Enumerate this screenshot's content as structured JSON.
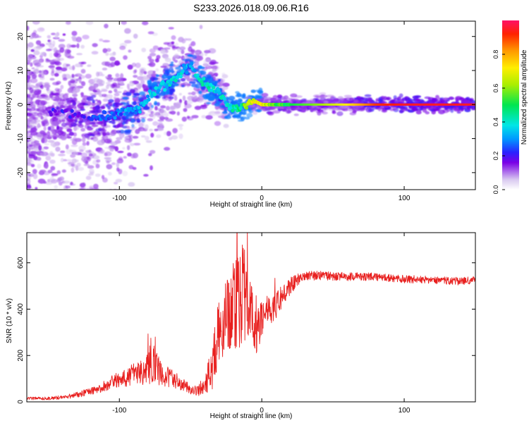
{
  "title": "S233.2026.018.09.06.R16",
  "colors": {
    "line": "#e8201f",
    "axis": "#000000",
    "background": "#ffffff"
  },
  "chart_data": [
    {
      "type": "heatmap",
      "xlabel": "Height of straight line (km)",
      "ylabel": "Frequency (Hz)",
      "xlim": [
        -165,
        150
      ],
      "ylim": [
        -25,
        24.5
      ],
      "xticks": [
        -100,
        0,
        100
      ],
      "yticks": [
        -20,
        -10,
        0,
        10,
        20
      ],
      "colorbar": {
        "label": "Normalized spectral amplitude",
        "range": [
          0,
          1
        ],
        "ticks": [
          "0.0",
          "0.2",
          "0.4",
          "0.6",
          "0.8"
        ],
        "tick_values": [
          0,
          0.2,
          0.4,
          0.6,
          0.8
        ]
      },
      "ridge": {
        "x": [
          -165,
          -140,
          -120,
          -105,
          -95,
          -85,
          -78,
          -70,
          -62,
          -55,
          -50,
          -45,
          -40,
          -35,
          -30,
          -25,
          -20,
          -15,
          -10,
          -5,
          0,
          10,
          20,
          40,
          60,
          80,
          100,
          120,
          150
        ],
        "freq": [
          -3,
          -2,
          -4,
          -3,
          -2,
          -1,
          3,
          5,
          7,
          10,
          12,
          8,
          6,
          5,
          3,
          0,
          -1,
          -1,
          0,
          1,
          0,
          0,
          0,
          0,
          0,
          0,
          0,
          0,
          0
        ],
        "amplitude": [
          0.18,
          0.2,
          0.22,
          0.25,
          0.3,
          0.3,
          0.35,
          0.35,
          0.38,
          0.35,
          0.3,
          0.38,
          0.4,
          0.4,
          0.38,
          0.38,
          0.4,
          0.45,
          0.65,
          0.7,
          0.7,
          0.55,
          0.5,
          0.6,
          0.72,
          0.9,
          0.95,
          0.95,
          0.95
        ]
      }
    },
    {
      "type": "line",
      "xlabel": "Height of straight line (km)",
      "ylabel": "SNR (10 * v/v)",
      "xlim": [
        -165,
        150
      ],
      "ylim": [
        0,
        730
      ],
      "xticks": [
        -100,
        0,
        100
      ],
      "yticks": [
        0,
        200,
        400,
        600
      ],
      "series": [
        {
          "name": "SNR",
          "x": [
            -165,
            -150,
            -140,
            -130,
            -120,
            -110,
            -100,
            -90,
            -80,
            -76,
            -70,
            -60,
            -50,
            -45,
            -40,
            -35,
            -30,
            -25,
            -20,
            -15,
            -12,
            -10,
            -5,
            0,
            5,
            10,
            15,
            20,
            25,
            30,
            40,
            60,
            80,
            100,
            120,
            140,
            150
          ],
          "y": [
            15,
            15,
            20,
            30,
            45,
            70,
            100,
            120,
            140,
            160,
            120,
            90,
            55,
            50,
            80,
            150,
            300,
            350,
            400,
            450,
            500,
            420,
            300,
            350,
            400,
            420,
            460,
            500,
            530,
            545,
            545,
            540,
            540,
            530,
            525,
            520,
            525
          ],
          "noise_amplitude": [
            6,
            7,
            9,
            12,
            17,
            26,
            38,
            50,
            65,
            85,
            50,
            35,
            22,
            25,
            45,
            100,
            150,
            170,
            200,
            230,
            260,
            200,
            120,
            80,
            70,
            60,
            50,
            40,
            28,
            22,
            20,
            18,
            17,
            17,
            17,
            17,
            17
          ]
        }
      ]
    }
  ]
}
